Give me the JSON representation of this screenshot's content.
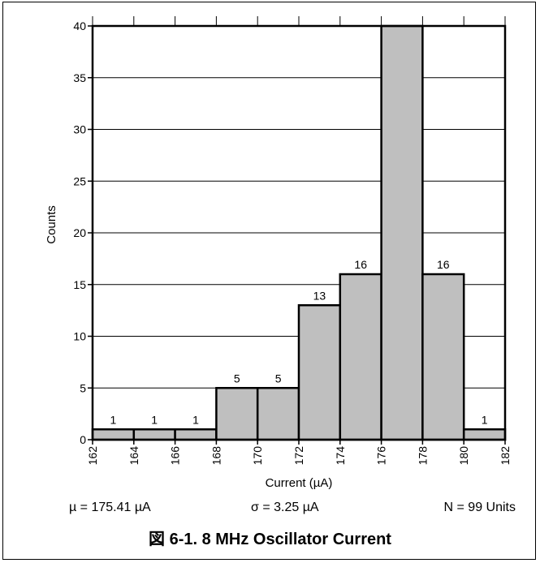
{
  "chart_data": {
    "type": "bar",
    "title": "図 6-1. 8 MHz Oscillator Current",
    "xlabel": "Current (µA)",
    "ylabel": "Counts",
    "xlim": [
      162,
      182
    ],
    "ylim": [
      0,
      40
    ],
    "x_ticks": [
      162,
      164,
      166,
      168,
      170,
      172,
      174,
      176,
      178,
      180,
      182
    ],
    "y_ticks": [
      0,
      5,
      10,
      15,
      20,
      25,
      30,
      35,
      40
    ],
    "bins": [
      [
        162,
        164
      ],
      [
        164,
        166
      ],
      [
        166,
        168
      ],
      [
        168,
        170
      ],
      [
        170,
        172
      ],
      [
        172,
        174
      ],
      [
        174,
        176
      ],
      [
        176,
        178
      ],
      [
        178,
        180
      ],
      [
        180,
        182
      ]
    ],
    "values": [
      1,
      1,
      1,
      5,
      5,
      13,
      16,
      40,
      16,
      1
    ],
    "data_labels": [
      "1",
      "1",
      "1",
      "5",
      "5",
      "13",
      "16",
      "",
      "16",
      "1"
    ],
    "bar_color": "#bfbfbf",
    "grid": "horizontal",
    "stats": {
      "mean": "µ = 175.41 µA",
      "sigma": "σ = 3.25 µA",
      "n": "N = 99 Units"
    }
  }
}
